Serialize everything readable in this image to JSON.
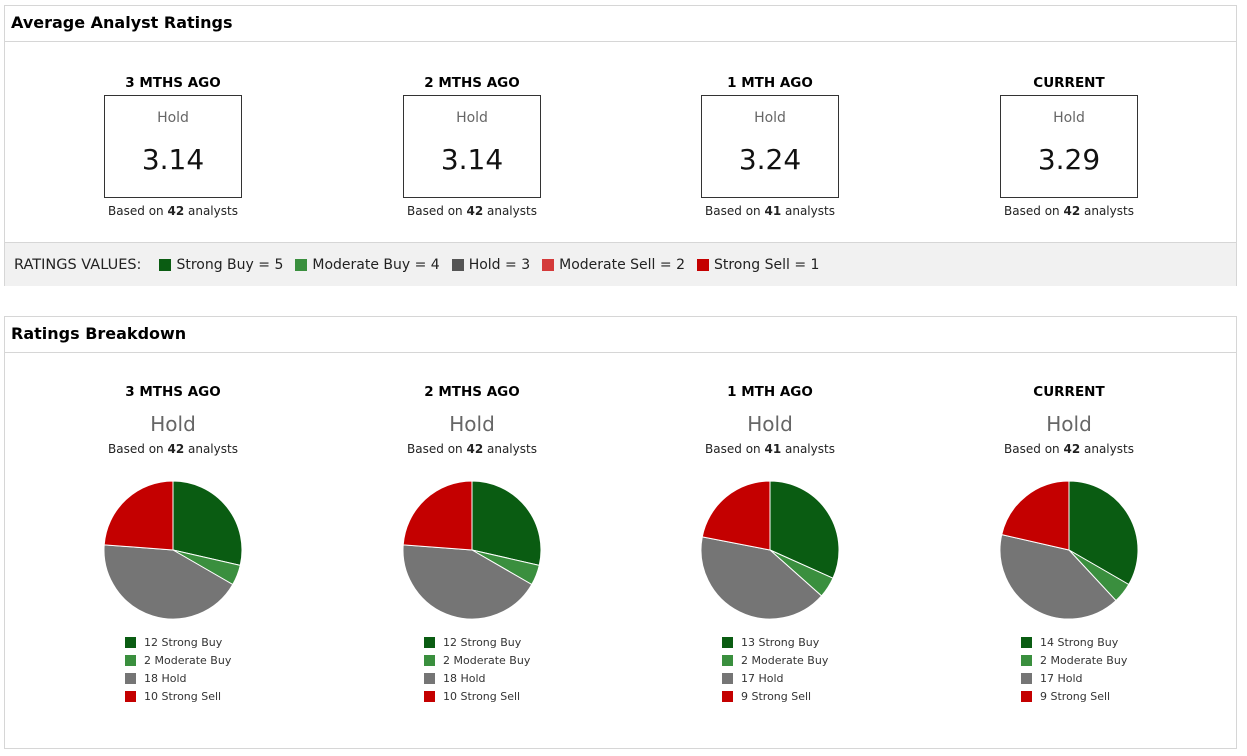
{
  "average": {
    "title": "Average Analyst Ratings",
    "periods": [
      {
        "label": "3 MTHS AGO",
        "rating": "Hold",
        "value": "3.14",
        "based_prefix": "Based on ",
        "analysts": "42",
        "based_suffix": " analysts"
      },
      {
        "label": "2 MTHS AGO",
        "rating": "Hold",
        "value": "3.14",
        "based_prefix": "Based on ",
        "analysts": "42",
        "based_suffix": " analysts"
      },
      {
        "label": "1 MTH AGO",
        "rating": "Hold",
        "value": "3.24",
        "based_prefix": "Based on ",
        "analysts": "41",
        "based_suffix": " analysts"
      },
      {
        "label": "CURRENT",
        "rating": "Hold",
        "value": "3.29",
        "based_prefix": "Based on ",
        "analysts": "42",
        "based_suffix": " analysts"
      }
    ],
    "values_title": "RATINGS VALUES:",
    "values": [
      {
        "label": "Strong Buy = 5",
        "color": "#0a5c12"
      },
      {
        "label": "Moderate Buy = 4",
        "color": "#3a8f3e"
      },
      {
        "label": "Hold = 3",
        "color": "#555555"
      },
      {
        "label": "Moderate Sell = 2",
        "color": "#d43a3a"
      },
      {
        "label": "Strong Sell = 1",
        "color": "#c40000"
      }
    ]
  },
  "breakdown": {
    "title": "Ratings Breakdown",
    "periods": [
      {
        "label": "3 MTHS AGO",
        "rating": "Hold",
        "based_prefix": "Based on ",
        "analysts": "42",
        "based_suffix": " analysts",
        "legend": [
          "12 Strong Buy",
          "2 Moderate Buy",
          "18 Hold",
          "10 Strong Sell"
        ]
      },
      {
        "label": "2 MTHS AGO",
        "rating": "Hold",
        "based_prefix": "Based on ",
        "analysts": "42",
        "based_suffix": " analysts",
        "legend": [
          "12 Strong Buy",
          "2 Moderate Buy",
          "18 Hold",
          "10 Strong Sell"
        ]
      },
      {
        "label": "1 MTH AGO",
        "rating": "Hold",
        "based_prefix": "Based on ",
        "analysts": "41",
        "based_suffix": " analysts",
        "legend": [
          "13 Strong Buy",
          "2 Moderate Buy",
          "17 Hold",
          "9 Strong Sell"
        ]
      },
      {
        "label": "CURRENT",
        "rating": "Hold",
        "based_prefix": "Based on ",
        "analysts": "42",
        "based_suffix": " analysts",
        "legend": [
          "14 Strong Buy",
          "2 Moderate Buy",
          "17 Hold",
          "9 Strong Sell"
        ]
      }
    ]
  },
  "chart_data": [
    {
      "type": "pie",
      "categories": [
        "Strong Buy",
        "Moderate Buy",
        "Hold",
        "Strong Sell"
      ],
      "values": [
        12,
        2,
        18,
        10
      ],
      "colors": [
        "#0a5c12",
        "#3a8f3e",
        "#757575",
        "#c40000"
      ]
    },
    {
      "type": "pie",
      "categories": [
        "Strong Buy",
        "Moderate Buy",
        "Hold",
        "Strong Sell"
      ],
      "values": [
        12,
        2,
        18,
        10
      ],
      "colors": [
        "#0a5c12",
        "#3a8f3e",
        "#757575",
        "#c40000"
      ]
    },
    {
      "type": "pie",
      "categories": [
        "Strong Buy",
        "Moderate Buy",
        "Hold",
        "Strong Sell"
      ],
      "values": [
        13,
        2,
        17,
        9
      ],
      "colors": [
        "#0a5c12",
        "#3a8f3e",
        "#757575",
        "#c40000"
      ]
    },
    {
      "type": "pie",
      "categories": [
        "Strong Buy",
        "Moderate Buy",
        "Hold",
        "Strong Sell"
      ],
      "values": [
        14,
        2,
        17,
        9
      ],
      "colors": [
        "#0a5c12",
        "#3a8f3e",
        "#757575",
        "#c40000"
      ]
    }
  ]
}
